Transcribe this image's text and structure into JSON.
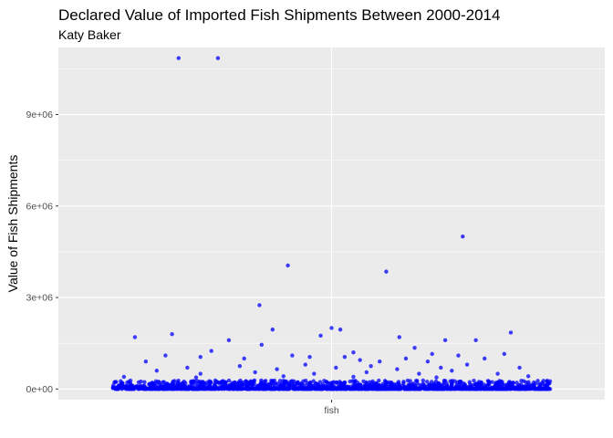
{
  "chart_data": {
    "type": "scatter",
    "title": "Declared Value of Imported Fish Shipments Between 2000-2014",
    "subtitle": "Katy Baker",
    "xlabel": "",
    "ylabel": "Value of Fish Shipments",
    "categories": [
      "fish"
    ],
    "y_ticks": [
      0,
      3000000,
      6000000,
      9000000
    ],
    "y_tick_labels": [
      "0e+00",
      "3e+06",
      "6e+06",
      "9e+06"
    ],
    "ylim": [
      -350000,
      11200000
    ],
    "grid": true,
    "legend": "none",
    "colors": {
      "point": "#0000ff",
      "panel": "#ebebeb",
      "grid": "#ffffff"
    },
    "jitter_width": 0.8,
    "series": [
      {
        "category": "fish",
        "points": [
          [
            -0.7,
            10850000
          ],
          [
            -0.52,
            10850000
          ],
          [
            -0.2,
            4050000
          ],
          [
            0.6,
            5000000
          ],
          [
            0.25,
            3850000
          ],
          [
            -0.33,
            2750000
          ],
          [
            -0.27,
            1950000
          ],
          [
            0.0,
            2000000
          ],
          [
            0.04,
            1950000
          ],
          [
            -0.9,
            1700000
          ],
          [
            -0.73,
            1800000
          ],
          [
            -0.47,
            1600000
          ],
          [
            -0.05,
            1750000
          ],
          [
            0.31,
            1700000
          ],
          [
            0.52,
            1600000
          ],
          [
            0.82,
            1850000
          ],
          [
            0.66,
            1600000
          ],
          [
            0.79,
            1150000
          ],
          [
            -0.32,
            1450000
          ],
          [
            -0.55,
            1250000
          ],
          [
            -0.76,
            1100000
          ],
          [
            0.1,
            1200000
          ],
          [
            0.38,
            1350000
          ],
          [
            0.46,
            1150000
          ],
          [
            0.58,
            1100000
          ],
          [
            -0.6,
            1050000
          ],
          [
            -0.85,
            900000
          ],
          [
            -0.4,
            1000000
          ],
          [
            -0.18,
            1100000
          ],
          [
            -0.1,
            1050000
          ],
          [
            0.06,
            1050000
          ],
          [
            0.13,
            950000
          ],
          [
            0.22,
            900000
          ],
          [
            0.34,
            1000000
          ],
          [
            0.44,
            900000
          ],
          [
            0.7,
            1000000
          ],
          [
            -0.66,
            700000
          ],
          [
            -0.42,
            750000
          ],
          [
            -0.25,
            650000
          ],
          [
            -0.12,
            800000
          ],
          [
            0.02,
            700000
          ],
          [
            0.18,
            750000
          ],
          [
            0.3,
            650000
          ],
          [
            0.5,
            700000
          ],
          [
            0.62,
            800000
          ],
          [
            0.86,
            700000
          ],
          [
            -0.8,
            600000
          ],
          [
            -0.6,
            500000
          ],
          [
            -0.35,
            550000
          ],
          [
            -0.08,
            500000
          ],
          [
            0.16,
            550000
          ],
          [
            0.4,
            500000
          ],
          [
            0.55,
            600000
          ],
          [
            0.76,
            500000
          ],
          [
            -0.95,
            400000
          ],
          [
            -0.62,
            380000
          ],
          [
            -0.22,
            420000
          ],
          [
            0.1,
            400000
          ],
          [
            0.48,
            380000
          ],
          [
            0.9,
            420000
          ]
        ]
      }
    ],
    "dense_band": {
      "category": "fish",
      "y_min": 0,
      "y_max": 280000,
      "count": 1600
    }
  }
}
